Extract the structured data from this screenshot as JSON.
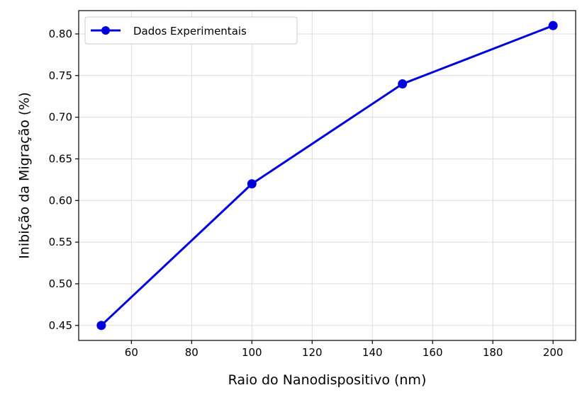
{
  "chart_data": {
    "type": "line",
    "title": "",
    "xlabel": "Raio do Nanodispositivo (nm)",
    "ylabel": "Inibição da Migração (%)",
    "x": [
      50,
      100,
      150,
      200
    ],
    "series": [
      {
        "name": "Dados Experimentais",
        "values": [
          0.45,
          0.62,
          0.74,
          0.81
        ],
        "color": "#0000dd",
        "marker": "circle"
      }
    ],
    "xlim": [
      42.5,
      207.5
    ],
    "ylim": [
      0.432,
      0.828
    ],
    "xticks": [
      60,
      80,
      100,
      120,
      140,
      160,
      180,
      200
    ],
    "xtick_labels": [
      "60",
      "80",
      "100",
      "120",
      "140",
      "160",
      "180",
      "200"
    ],
    "yticks": [
      0.45,
      0.5,
      0.55,
      0.6,
      0.65,
      0.7,
      0.75,
      0.8
    ],
    "ytick_labels": [
      "0.45",
      "0.50",
      "0.55",
      "0.60",
      "0.65",
      "0.70",
      "0.75",
      "0.80"
    ],
    "grid": true,
    "legend_position": "top-left"
  }
}
